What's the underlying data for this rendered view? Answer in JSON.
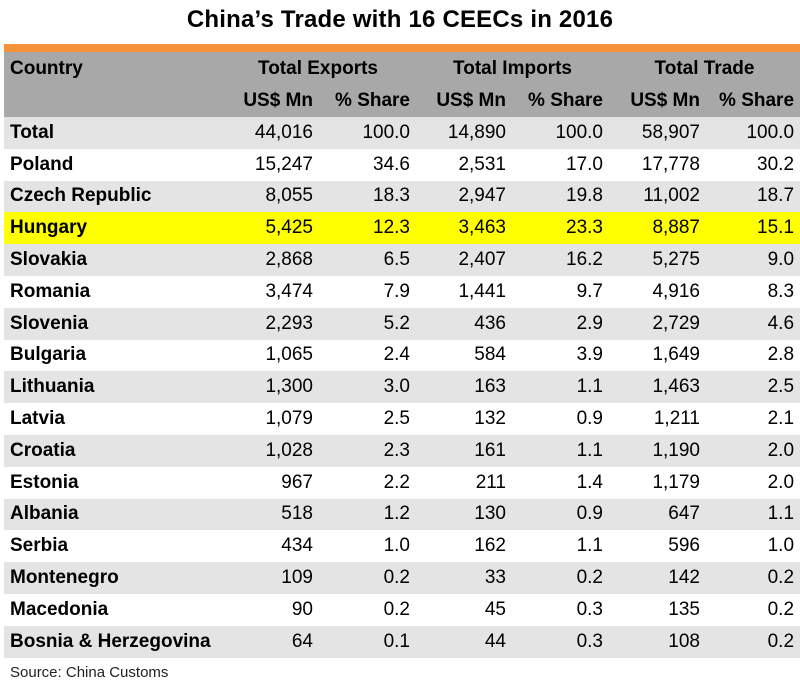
{
  "title": "China’s Trade with 16 CEECs in 2016",
  "colors": {
    "header_bg": "#a8a8a8",
    "accent_bar": "#f7923b",
    "row_shade": "#e4e4e4",
    "highlight": "#ffff00"
  },
  "table": {
    "headers": {
      "country": "Country",
      "groups": [
        "Total Exports",
        "Total Imports",
        "Total Trade"
      ],
      "subs": [
        "US$ Mn",
        "% Share",
        "US$ Mn",
        "% Share",
        "US$ Mn",
        "% Share"
      ]
    },
    "rows": [
      {
        "country": "Total",
        "values": [
          "44,016",
          "100.0",
          "14,890",
          "100.0",
          "58,907",
          "100.0"
        ]
      },
      {
        "country": "Poland",
        "values": [
          "15,247",
          "34.6",
          "2,531",
          "17.0",
          "17,778",
          "30.2"
        ]
      },
      {
        "country": "Czech Republic",
        "values": [
          "8,055",
          "18.3",
          "2,947",
          "19.8",
          "11,002",
          "18.7"
        ]
      },
      {
        "country": "Hungary",
        "values": [
          "5,425",
          "12.3",
          "3,463",
          "23.3",
          "8,887",
          "15.1"
        ]
      },
      {
        "country": "Slovakia",
        "values": [
          "2,868",
          "6.5",
          "2,407",
          "16.2",
          "5,275",
          "9.0"
        ]
      },
      {
        "country": "Romania",
        "values": [
          "3,474",
          "7.9",
          "1,441",
          "9.7",
          "4,916",
          "8.3"
        ]
      },
      {
        "country": "Slovenia",
        "values": [
          "2,293",
          "5.2",
          "436",
          "2.9",
          "2,729",
          "4.6"
        ]
      },
      {
        "country": "Bulgaria",
        "values": [
          "1,065",
          "2.4",
          "584",
          "3.9",
          "1,649",
          "2.8"
        ]
      },
      {
        "country": "Lithuania",
        "values": [
          "1,300",
          "3.0",
          "163",
          "1.1",
          "1,463",
          "2.5"
        ]
      },
      {
        "country": "Latvia",
        "values": [
          "1,079",
          "2.5",
          "132",
          "0.9",
          "1,211",
          "2.1"
        ]
      },
      {
        "country": "Croatia",
        "values": [
          "1,028",
          "2.3",
          "161",
          "1.1",
          "1,190",
          "2.0"
        ]
      },
      {
        "country": "Estonia",
        "values": [
          "967",
          "2.2",
          "211",
          "1.4",
          "1,179",
          "2.0"
        ]
      },
      {
        "country": "Albania",
        "values": [
          "518",
          "1.2",
          "130",
          "0.9",
          "647",
          "1.1"
        ]
      },
      {
        "country": "Serbia",
        "values": [
          "434",
          "1.0",
          "162",
          "1.1",
          "596",
          "1.0"
        ]
      },
      {
        "country": "Montenegro",
        "values": [
          "109",
          "0.2",
          "33",
          "0.2",
          "142",
          "0.2"
        ]
      },
      {
        "country": "Macedonia",
        "values": [
          "90",
          "0.2",
          "45",
          "0.3",
          "135",
          "0.2"
        ]
      },
      {
        "country": "Bosnia & Herzegovina",
        "values": [
          "64",
          "0.1",
          "44",
          "0.3",
          "108",
          "0.2"
        ]
      }
    ],
    "highlighted_country": "Hungary"
  },
  "source": "Source: China Customs"
}
